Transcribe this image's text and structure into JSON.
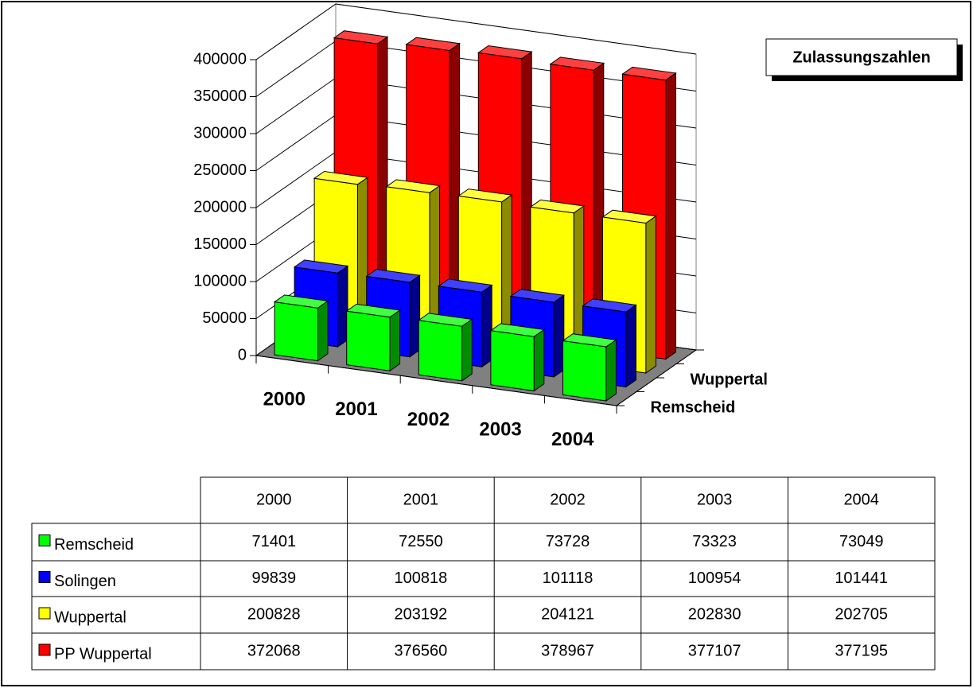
{
  "chart_data": {
    "type": "bar3d",
    "title": "Zulassungszahlen",
    "categories": [
      "2000",
      "2001",
      "2002",
      "2003",
      "2004"
    ],
    "series": [
      {
        "name": "Remscheid",
        "color": "#00ff00",
        "values": [
          71401,
          72550,
          73728,
          73323,
          73049
        ]
      },
      {
        "name": "Solingen",
        "color": "#0000ff",
        "values": [
          99839,
          100818,
          101118,
          100954,
          101441
        ]
      },
      {
        "name": "Wuppertal",
        "color": "#ffff00",
        "values": [
          200828,
          203192,
          204121,
          202830,
          202705
        ]
      },
      {
        "name": "PP Wuppertal",
        "color": "#ff0000",
        "values": [
          372068,
          376560,
          378967,
          377107,
          377195
        ]
      }
    ],
    "ylim": [
      0,
      400000
    ],
    "yticks": [
      0,
      50000,
      100000,
      150000,
      200000,
      250000,
      300000,
      350000,
      400000
    ],
    "grid": true
  }
}
